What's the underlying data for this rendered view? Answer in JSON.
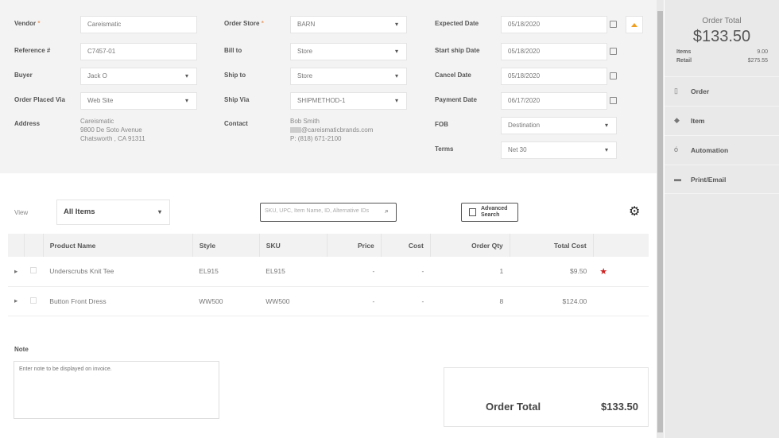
{
  "form": {
    "vendor": {
      "label": "Vendor",
      "value": "Careismatic"
    },
    "reference": {
      "label": "Reference #",
      "value": "C7457-01"
    },
    "buyer": {
      "label": "Buyer",
      "value": "Jack O"
    },
    "order_placed_via": {
      "label": "Order Placed Via",
      "value": "Web Site"
    },
    "address": {
      "label": "Address",
      "lines": [
        "Careismatic",
        "9800 De Soto Avenue",
        "Chatsworth , CA 91311"
      ]
    },
    "order_store": {
      "label": "Order Store",
      "value": "BARN"
    },
    "bill_to": {
      "label": "Bill to",
      "value": "Store"
    },
    "ship_to": {
      "label": "Ship to",
      "value": "Store"
    },
    "ship_via": {
      "label": "Ship Via",
      "value": "SHIPMETHOD-1"
    },
    "contact": {
      "label": "Contact",
      "lines": [
        "Bob Smith",
        "@careismaticbrands.com",
        "P: (818) 671-2100"
      ]
    },
    "expected_date": {
      "label": "Expected Date",
      "value": "05/18/2020"
    },
    "start_ship_date": {
      "label": "Start ship Date",
      "value": "05/18/2020"
    },
    "cancel_date": {
      "label": "Cancel Date",
      "value": "05/18/2020"
    },
    "payment_date": {
      "label": "Payment Date",
      "value": "06/17/2020"
    },
    "fob": {
      "label": "FOB",
      "value": "Destination"
    },
    "terms": {
      "label": "Terms",
      "value": "Net 30"
    },
    "required_mark": "*"
  },
  "toolbar": {
    "view_label": "View",
    "view_value": "All Items",
    "search_placeholder": "SKU, UPC, Item Name, ID, Alternative IDs",
    "advanced_search": "Advanced Search"
  },
  "table": {
    "headers": [
      "Product Name",
      "Style",
      "SKU",
      "Price",
      "Cost",
      "Order Qty",
      "Total Cost"
    ],
    "rows": [
      {
        "product": "Underscrubs Knit Tee",
        "style": "EL915",
        "sku": "EL915",
        "price": "-",
        "cost": "-",
        "qty": "1",
        "total": "$9.50",
        "starred": true
      },
      {
        "product": "Button Front Dress",
        "style": "WW500",
        "sku": "WW500",
        "price": "-",
        "cost": "-",
        "qty": "8",
        "total": "$124.00",
        "starred": false
      }
    ]
  },
  "note": {
    "label": "Note",
    "placeholder": "Enter note to be displayed on invoice."
  },
  "summary": {
    "label": "Order Total",
    "value": "$133.50"
  },
  "sidebar": {
    "title": "Order Total",
    "total": "$133.50",
    "items_label": "Items",
    "items_value": "9.00",
    "retail_label": "Retail",
    "retail_value": "$275.55",
    "menu": [
      {
        "label": "Order",
        "icon": "document-icon"
      },
      {
        "label": "Item",
        "icon": "box-icon"
      },
      {
        "label": "Automation",
        "icon": "automation-icon"
      },
      {
        "label": "Print/Email",
        "icon": "print-icon"
      }
    ]
  },
  "colors": {
    "accent": "#f0a020",
    "star": "#cc2222"
  }
}
